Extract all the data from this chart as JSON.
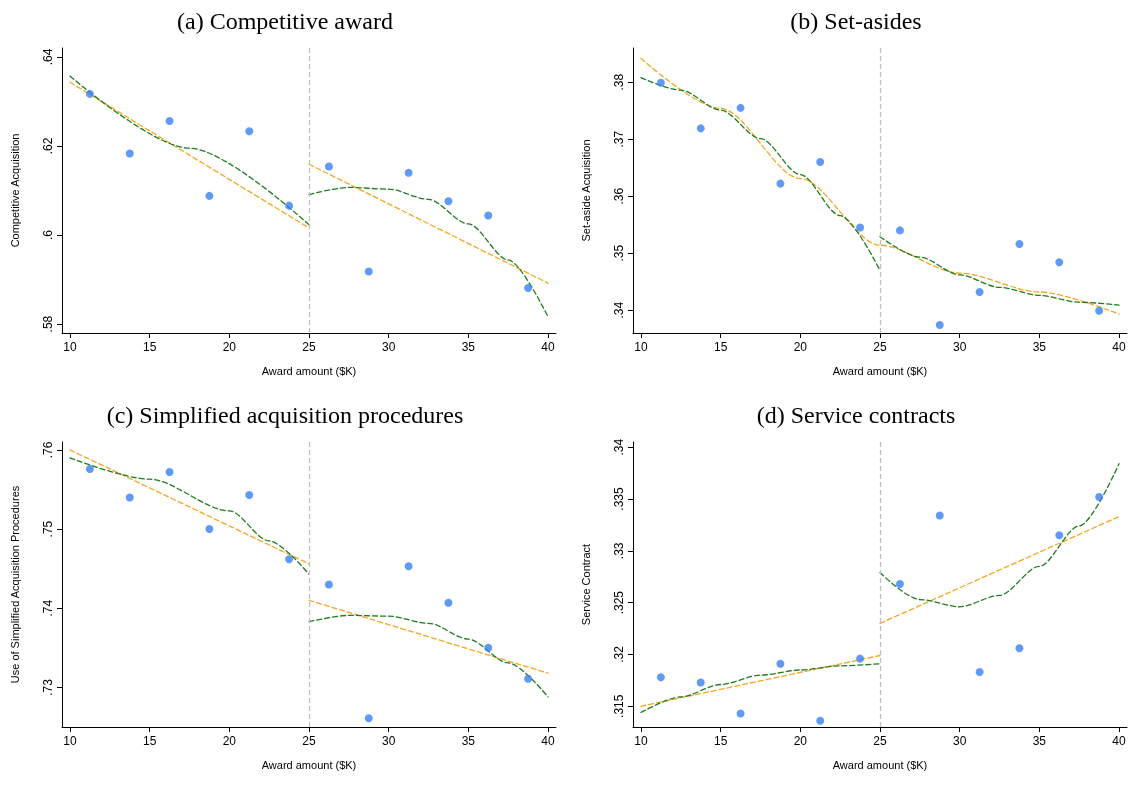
{
  "chart_data": [
    {
      "type": "scatter",
      "title": "(a) Competitive award",
      "xlabel": "Award amount ($K)",
      "ylabel": "Competitive Acquisition",
      "xlim": [
        9.5,
        40.5
      ],
      "xticks": [
        10,
        15,
        20,
        25,
        30,
        35,
        40
      ],
      "ylim": [
        0.578,
        0.642
      ],
      "yticks": [
        {
          "value": 0.58,
          "label": ".58"
        },
        {
          "value": 0.6,
          "label": ".6"
        },
        {
          "value": 0.62,
          "label": ".62"
        },
        {
          "value": 0.64,
          "label": ".64"
        }
      ],
      "grid": false,
      "marker": "circle",
      "x": [
        11.25,
        13.75,
        16.25,
        18.75,
        21.25,
        23.75,
        26.25,
        28.75,
        31.25,
        33.75,
        36.25,
        38.75
      ],
      "series": [
        {
          "color": "#3a80f5",
          "values": [
            0.6317,
            0.6183,
            0.6256,
            0.6088,
            0.6233,
            0.6066,
            0.6154,
            0.5918,
            0.614,
            0.6076,
            0.6044,
            0.5881
          ]
        },
        {
          "type": "line",
          "color": "#f5a623",
          "line_style": "dashed",
          "marker": "none",
          "x": [
            10,
            25
          ],
          "values": [
            0.6343,
            0.6016
          ]
        },
        {
          "type": "line",
          "color": "#1e7b1e",
          "line_style": "dashed",
          "marker": "none",
          "x": [
            10,
            17.5,
            25
          ],
          "values": [
            0.6357,
            0.6195,
            0.6023
          ]
        },
        {
          "type": "line",
          "color": "#f5a623",
          "line_style": "dashed",
          "marker": "none",
          "x": [
            25,
            40
          ],
          "values": [
            0.6159,
            0.5892
          ]
        },
        {
          "type": "line",
          "color": "#1e7b1e",
          "line_style": "dashed",
          "marker": "none",
          "x": [
            25,
            27.5,
            30,
            32.5,
            35,
            37.5,
            40
          ],
          "values": [
            0.6091,
            0.6107,
            0.6103,
            0.608,
            0.6025,
            0.5944,
            0.5816
          ]
        }
      ],
      "ref_lines": [
        {
          "axis": "x",
          "value": 25,
          "label": null,
          "color": "#c0c0c0",
          "line_style": "dashed"
        }
      ]
    },
    {
      "type": "scatter",
      "title": "(b) Set-asides",
      "xlabel": "Award amount ($K)",
      "ylabel": "Set-aside Acquisition",
      "xlim": [
        9.5,
        40.5
      ],
      "xticks": [
        10,
        15,
        20,
        25,
        30,
        35,
        40
      ],
      "ylim": [
        0.336,
        0.386
      ],
      "yticks": [
        {
          "value": 0.34,
          "label": ".34"
        },
        {
          "value": 0.35,
          "label": ".35"
        },
        {
          "value": 0.36,
          "label": ".36"
        },
        {
          "value": 0.37,
          "label": ".37"
        },
        {
          "value": 0.38,
          "label": ".38"
        }
      ],
      "grid": false,
      "marker": "circle",
      "x": [
        11.25,
        13.75,
        16.25,
        18.75,
        21.25,
        23.75,
        26.25,
        28.75,
        31.25,
        33.75,
        36.25,
        38.75
      ],
      "series": [
        {
          "color": "#3a80f5",
          "values": [
            0.3799,
            0.3719,
            0.3755,
            0.3622,
            0.366,
            0.3545,
            0.354,
            0.3374,
            0.3432,
            0.3516,
            0.3484,
            0.3399
          ]
        },
        {
          "type": "line",
          "color": "#f5a623",
          "line_style": "dashed",
          "marker": "none",
          "x": [
            10,
            15,
            20,
            25,
            30,
            35,
            40
          ],
          "values": [
            0.3842,
            0.3754,
            0.3631,
            0.3514,
            0.3465,
            0.3432,
            0.3393
          ]
        },
        {
          "type": "line",
          "color": "#1e7b1e",
          "line_style": "dashed",
          "marker": "none",
          "x": [
            10,
            12.5,
            15,
            17.5,
            20,
            22.5,
            25
          ],
          "values": [
            0.3808,
            0.3786,
            0.3751,
            0.3701,
            0.3638,
            0.3566,
            0.347
          ]
        },
        {
          "type": "line",
          "color": "#1e7b1e",
          "line_style": "dashed",
          "marker": "none",
          "x": [
            25,
            27.5,
            30,
            32.5,
            35,
            37.5,
            40
          ],
          "values": [
            0.3529,
            0.3493,
            0.3462,
            0.344,
            0.3426,
            0.3414,
            0.3409
          ]
        }
      ],
      "ref_lines": [
        {
          "axis": "x",
          "value": 25,
          "label": null,
          "color": "#c0c0c0",
          "line_style": "dashed"
        }
      ]
    },
    {
      "type": "scatter",
      "title": "(c) Simplified acquisition procedures",
      "xlabel": "Award amount ($K)",
      "ylabel": "Use of Simplified Acquisition Procedures",
      "xlim": [
        9.5,
        40.5
      ],
      "xticks": [
        10,
        15,
        20,
        25,
        30,
        35,
        40
      ],
      "ylim": [
        0.725,
        0.761
      ],
      "yticks": [
        {
          "value": 0.73,
          "label": ".73"
        },
        {
          "value": 0.74,
          "label": ".74"
        },
        {
          "value": 0.75,
          "label": ".75"
        },
        {
          "value": 0.76,
          "label": ".76"
        }
      ],
      "grid": false,
      "marker": "circle",
      "x": [
        11.25,
        13.75,
        16.25,
        18.75,
        21.25,
        23.75,
        26.25,
        28.75,
        31.25,
        33.75,
        36.25,
        38.75
      ],
      "series": [
        {
          "color": "#3a80f5",
          "values": [
            0.7576,
            0.754,
            0.7572,
            0.75,
            0.7543,
            0.7462,
            0.743,
            0.7261,
            0.7453,
            0.7407,
            0.735,
            0.7311
          ]
        },
        {
          "type": "line",
          "color": "#f5a623",
          "line_style": "dashed",
          "marker": "none",
          "x": [
            10,
            25
          ],
          "values": [
            0.76,
            0.7456
          ]
        },
        {
          "type": "line",
          "color": "#1e7b1e",
          "line_style": "dashed",
          "marker": "none",
          "x": [
            10,
            15,
            20,
            22.5,
            25
          ],
          "values": [
            0.759,
            0.7563,
            0.7523,
            0.7485,
            0.7443
          ]
        },
        {
          "type": "line",
          "color": "#f5a623",
          "line_style": "dashed",
          "marker": "none",
          "x": [
            25,
            40
          ],
          "values": [
            0.741,
            0.7318
          ]
        },
        {
          "type": "line",
          "color": "#1e7b1e",
          "line_style": "dashed",
          "marker": "none",
          "x": [
            25,
            27.5,
            30,
            32.5,
            35,
            37.5,
            40
          ],
          "values": [
            0.7383,
            0.7391,
            0.739,
            0.7381,
            0.7361,
            0.7331,
            0.7288
          ]
        }
      ],
      "ref_lines": [
        {
          "axis": "x",
          "value": 25,
          "label": null,
          "color": "#c0c0c0",
          "line_style": "dashed"
        }
      ]
    },
    {
      "type": "scatter",
      "title": "(d) Service contracts",
      "xlabel": "Award amount ($K)",
      "ylabel": "Service Contract",
      "xlim": [
        9.5,
        40.5
      ],
      "xticks": [
        10,
        15,
        20,
        25,
        30,
        35,
        40
      ],
      "ylim": [
        0.313,
        0.3405
      ],
      "yticks": [
        {
          "value": 0.315,
          "label": ".315"
        },
        {
          "value": 0.32,
          "label": ".32"
        },
        {
          "value": 0.325,
          "label": ".325"
        },
        {
          "value": 0.33,
          "label": ".33"
        },
        {
          "value": 0.335,
          "label": ".335"
        },
        {
          "value": 0.34,
          "label": ".34"
        }
      ],
      "grid": false,
      "marker": "circle",
      "x": [
        11.25,
        13.75,
        16.25,
        18.75,
        21.25,
        23.75,
        26.25,
        28.75,
        31.25,
        33.75,
        36.25,
        38.75
      ],
      "series": [
        {
          "color": "#3a80f5",
          "values": [
            0.3178,
            0.3173,
            0.3143,
            0.3191,
            0.3136,
            0.3196,
            0.3268,
            0.3334,
            0.3183,
            0.3206,
            0.3315,
            0.3352
          ]
        },
        {
          "type": "line",
          "color": "#f5a623",
          "line_style": "dashed",
          "marker": "none",
          "x": [
            10,
            25
          ],
          "values": [
            0.315,
            0.3199
          ]
        },
        {
          "type": "line",
          "color": "#1e7b1e",
          "line_style": "dashed",
          "marker": "none",
          "x": [
            10,
            12.5,
            15,
            17.5,
            20,
            22.5,
            25
          ],
          "values": [
            0.3144,
            0.3159,
            0.3171,
            0.318,
            0.3185,
            0.3189,
            0.3191
          ]
        },
        {
          "type": "line",
          "color": "#f5a623",
          "line_style": "dashed",
          "marker": "none",
          "x": [
            25,
            40
          ],
          "values": [
            0.323,
            0.3333
          ]
        },
        {
          "type": "line",
          "color": "#1e7b1e",
          "line_style": "dashed",
          "marker": "none",
          "x": [
            25,
            27.5,
            30,
            32.5,
            35,
            37.5,
            40
          ],
          "values": [
            0.3279,
            0.3253,
            0.3246,
            0.3257,
            0.3285,
            0.3324,
            0.3384
          ]
        }
      ],
      "ref_lines": [
        {
          "axis": "x",
          "value": 25,
          "label": null,
          "color": "#c0c0c0",
          "line_style": "dashed"
        }
      ]
    }
  ]
}
